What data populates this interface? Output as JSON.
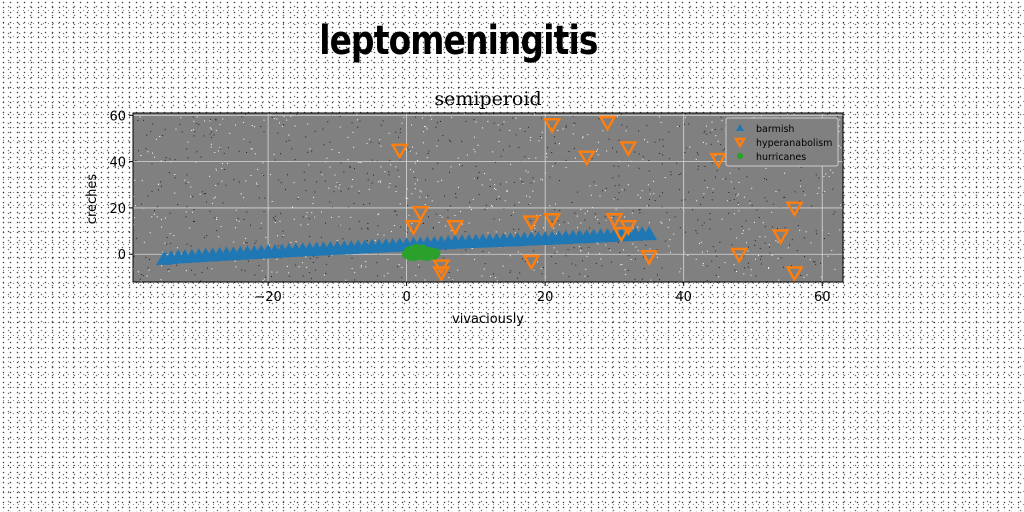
{
  "figure": {
    "suptitle": "leptomeningitis"
  },
  "chart_data": {
    "type": "scatter",
    "title": "semiperoid",
    "xlabel": "vivaciously",
    "ylabel": "creches",
    "xlim": [
      -39.5,
      63
    ],
    "ylim": [
      -12,
      61
    ],
    "xticks": [
      -20,
      0,
      20,
      40,
      60
    ],
    "yticks": [
      0,
      20,
      40,
      60
    ],
    "xtick_labels": [
      "−20",
      "0",
      "20",
      "40",
      "60"
    ],
    "ytick_labels": [
      "0",
      "20",
      "40",
      "60"
    ],
    "grid": true,
    "axes_facecolor": "#808080",
    "legend_placement": "upper right",
    "series": [
      {
        "name": "barmish",
        "marker": "triangle-up",
        "color": "#1f77b4",
        "points": [
          [
            -35,
            -2
          ],
          [
            -34,
            -1.6
          ],
          [
            -33,
            -1.3
          ],
          [
            -32,
            -1.2
          ],
          [
            -31,
            -1
          ],
          [
            -30,
            -0.8
          ],
          [
            -29,
            -0.6
          ],
          [
            -28,
            -0.5
          ],
          [
            -27,
            -0.3
          ],
          [
            -26,
            -0.1
          ],
          [
            -25,
            0
          ],
          [
            -24,
            0.2
          ],
          [
            -23,
            0.4
          ],
          [
            -22,
            0.5
          ],
          [
            -21,
            0.7
          ],
          [
            -20,
            0.9
          ],
          [
            -19,
            1
          ],
          [
            -18,
            1.2
          ],
          [
            -17,
            1.4
          ],
          [
            -16,
            1.5
          ],
          [
            -15,
            1.7
          ],
          [
            -14,
            1.8
          ],
          [
            -13,
            2
          ],
          [
            -12,
            2.1
          ],
          [
            -11,
            2.3
          ],
          [
            -10,
            2.4
          ],
          [
            -9,
            2.6
          ],
          [
            -8,
            2.7
          ],
          [
            -7,
            2.9
          ],
          [
            -6,
            3
          ],
          [
            -5,
            3.2
          ],
          [
            -4,
            3.3
          ],
          [
            -3,
            3.5
          ],
          [
            -2,
            3.6
          ],
          [
            -1,
            3.8
          ],
          [
            0,
            3.9
          ],
          [
            1,
            4.1
          ],
          [
            2,
            4.2
          ],
          [
            3,
            4.4
          ],
          [
            4,
            4.5
          ],
          [
            5,
            4.7
          ],
          [
            6,
            4.8
          ],
          [
            7,
            5
          ],
          [
            8,
            5.1
          ],
          [
            9,
            5.3
          ],
          [
            10,
            5.4
          ],
          [
            11,
            5.5
          ],
          [
            12,
            5.6
          ],
          [
            13,
            5.7
          ],
          [
            14,
            5.9
          ],
          [
            15,
            6
          ],
          [
            16,
            6.1
          ],
          [
            17,
            6.3
          ],
          [
            18,
            6.4
          ],
          [
            19,
            6.5
          ],
          [
            20,
            6.6
          ],
          [
            21,
            6.8
          ],
          [
            22,
            6.9
          ],
          [
            23,
            7
          ],
          [
            24,
            7.2
          ],
          [
            25,
            7.3
          ],
          [
            26,
            7.4
          ],
          [
            27,
            7.6
          ],
          [
            28,
            7.7
          ],
          [
            29,
            7.8
          ],
          [
            30,
            8
          ],
          [
            31,
            8.1
          ],
          [
            32,
            8.3
          ],
          [
            33,
            8.4
          ],
          [
            34,
            8.6
          ],
          [
            35,
            8.7
          ]
        ]
      },
      {
        "name": "hyperanabolism",
        "marker": "triangle-down",
        "color": "#ff7f0e",
        "points": [
          [
            -1,
            45
          ],
          [
            1,
            12
          ],
          [
            2,
            18
          ],
          [
            5,
            -5
          ],
          [
            5,
            -8
          ],
          [
            7,
            12
          ],
          [
            18,
            -3
          ],
          [
            18,
            14
          ],
          [
            21,
            56
          ],
          [
            21,
            15
          ],
          [
            26,
            42
          ],
          [
            29,
            57
          ],
          [
            30,
            15
          ],
          [
            31,
            9
          ],
          [
            32,
            12
          ],
          [
            32,
            46
          ],
          [
            35,
            -1
          ],
          [
            45,
            41
          ],
          [
            48,
            0
          ],
          [
            54,
            8
          ],
          [
            56,
            20
          ],
          [
            56,
            -8
          ]
        ]
      },
      {
        "name": "hurricanes",
        "marker": "circle",
        "color": "#2ca02c",
        "points": [
          [
            0,
            0
          ],
          [
            0.3,
            1.2
          ],
          [
            0.5,
            -0.8
          ],
          [
            0.8,
            1.8
          ],
          [
            1,
            0.4
          ],
          [
            1.2,
            -1
          ],
          [
            1.5,
            1.5
          ],
          [
            1.7,
            0
          ],
          [
            2,
            0.9
          ],
          [
            2.2,
            -0.6
          ],
          [
            2.5,
            1.6
          ],
          [
            2.7,
            0.3
          ],
          [
            3,
            -0.9
          ],
          [
            3.2,
            1.1
          ],
          [
            3.5,
            0
          ],
          [
            3.7,
            0.8
          ],
          [
            4,
            -0.4
          ],
          [
            4.2,
            0.5
          ],
          [
            1.4,
            2.4
          ],
          [
            2.3,
            2.2
          ]
        ]
      }
    ]
  }
}
